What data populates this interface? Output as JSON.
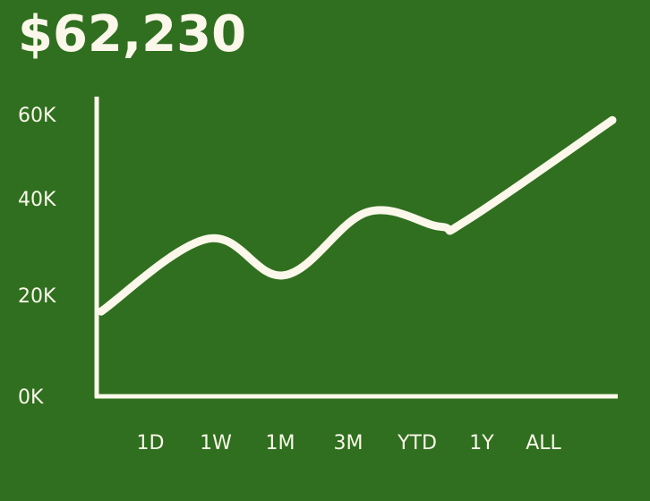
{
  "header": {
    "balance": "$62,230"
  },
  "colors": {
    "background": "#2f6f1f",
    "line": "#fbf7ea",
    "text": "#fbf7ea"
  },
  "chart_data": {
    "type": "line",
    "title": "",
    "xlabel": "",
    "ylabel": "",
    "ylim": [
      0,
      60000
    ],
    "y_ticks": [
      {
        "value": 0,
        "label": "0K"
      },
      {
        "value": 20000,
        "label": "20K"
      },
      {
        "value": 40000,
        "label": "40K"
      },
      {
        "value": 60000,
        "label": "60K"
      }
    ],
    "categories": [
      "1D",
      "1W",
      "1M",
      "3M",
      "YTD",
      "1Y",
      "ALL"
    ],
    "series": [
      {
        "values": [
          17500,
          32500,
          25000,
          38000,
          35000,
          36500,
          57000
        ]
      }
    ],
    "grid": false,
    "legend": "none"
  }
}
